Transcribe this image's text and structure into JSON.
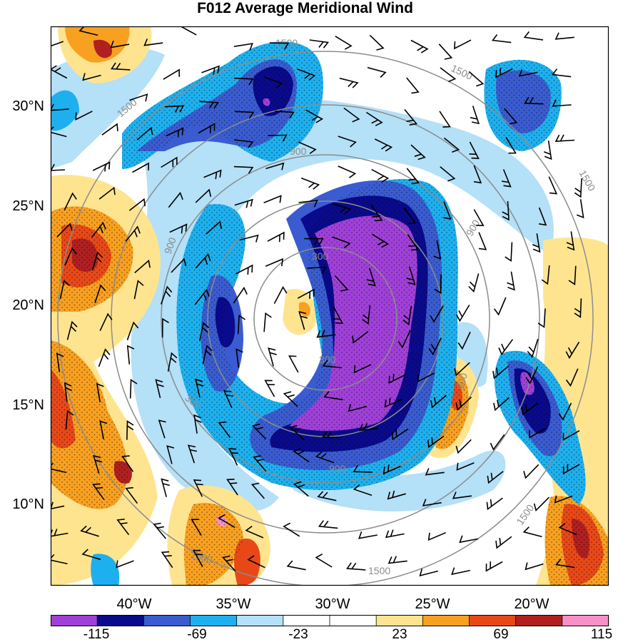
{
  "title": "F012 Average Meridional Wind",
  "lat_labels": [
    "30°N",
    "25°N",
    "20°N",
    "15°N",
    "10°N"
  ],
  "lon_labels": [
    "40°W",
    "35°W",
    "30°W",
    "25°W",
    "20°W"
  ],
  "contour_labels": {
    "inner": "300",
    "middle": "900",
    "outer": "1500"
  },
  "colors": {
    "c_neg5": "#a040d8",
    "c_neg4": "#0a0a8c",
    "c_neg3": "#3a5cd0",
    "c_neg2": "#1eb0ee",
    "c_neg1": "#b4e0f8",
    "c_zero": "#ffffff",
    "c_pos1": "#ffe490",
    "c_pos2": "#f8a020",
    "c_pos3": "#e84818",
    "c_pos4": "#b02020",
    "c_pos5": "#f890c8",
    "ring": "#8c8c8c"
  },
  "colorbar": {
    "labels": [
      "-115",
      "-69",
      "-23",
      "23",
      "69",
      "115"
    ]
  }
}
